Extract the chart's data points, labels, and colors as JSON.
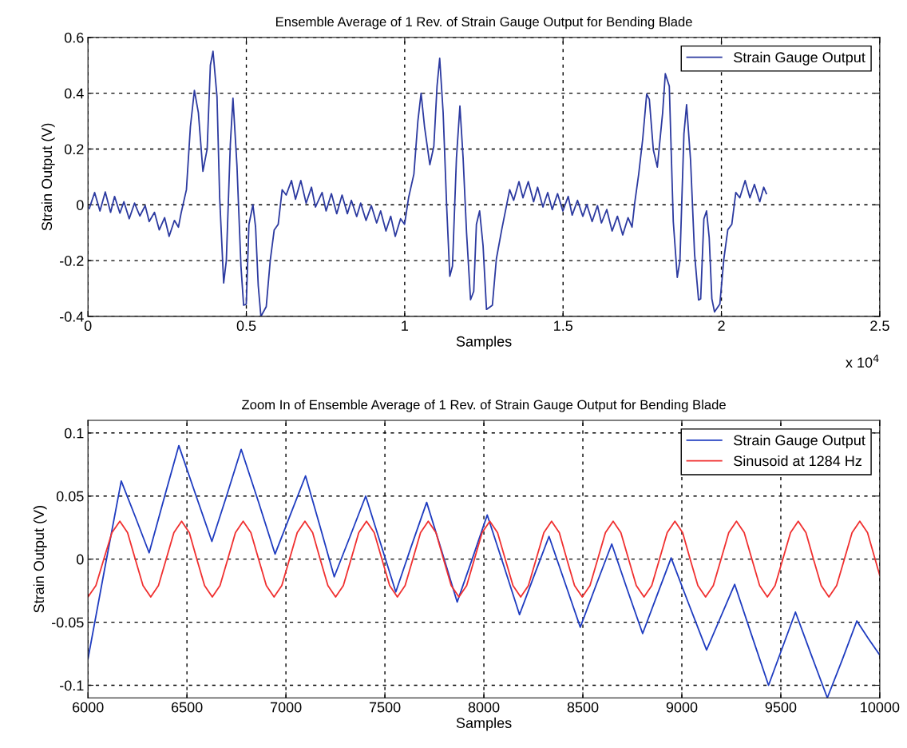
{
  "chart_data": [
    {
      "type": "line",
      "title": "Ensemble Average of 1 Rev. of Strain Gauge Output for Bending Blade",
      "xlabel": "Samples",
      "ylabel": "Strain Output (V)",
      "xlim": [
        0,
        2.5
      ],
      "ylim": [
        -0.4,
        0.6
      ],
      "xticks": [
        0,
        0.5,
        1,
        1.5,
        2,
        2.5
      ],
      "yticks": [
        -0.4,
        -0.2,
        0,
        0.2,
        0.4,
        0.6
      ],
      "grid": true,
      "legend": "top right",
      "annotations": [
        "x 10$^{4}$"
      ],
      "series": [
        {
          "name": "Strain Gauge Output",
          "color": "#2c3aa0",
          "x": [
            0.0042,
            0.021,
            0.0378,
            0.0546,
            0.0714,
            0.084,
            0.1008,
            0.1134,
            0.1302,
            0.147,
            0.1638,
            0.1806,
            0.1932,
            0.21,
            0.2251,
            0.2419,
            0.2562,
            0.273,
            0.2856,
            0.294,
            0.3108,
            0.3234,
            0.336,
            0.3486,
            0.3629,
            0.3763,
            0.3864,
            0.3948,
            0.4074,
            0.4158,
            0.4284,
            0.4368,
            0.4494,
            0.4578,
            0.4704,
            0.483,
            0.4914,
            0.4998,
            0.5082,
            0.5208,
            0.5292,
            0.5376,
            0.546,
            0.5628,
            0.5754,
            0.588,
            0.6006,
            0.6132,
            0.6258,
            0.6426,
            0.6552,
            0.672,
            0.6888,
            0.7056,
            0.7182,
            0.7392,
            0.7518,
            0.7686,
            0.7854,
            0.8022,
            0.819,
            0.8316,
            0.8484,
            0.861,
            0.8778,
            0.8946,
            0.9114,
            0.924,
            0.9408,
            0.9559,
            0.9702,
            0.987,
            0.9996,
            1.0122,
            1.029,
            1.0416,
            1.0517,
            1.0626,
            1.0794,
            1.092,
            1.1021,
            1.1105,
            1.1214,
            1.1323,
            1.1424,
            1.1508,
            1.1634,
            1.1743,
            1.1844,
            1.1953,
            1.2079,
            1.218,
            1.2264,
            1.2365,
            1.2474,
            1.2583,
            1.2768,
            1.2894,
            1.3062,
            1.323,
            1.3314,
            1.344,
            1.3608,
            1.3734,
            1.3902,
            1.407,
            1.4196,
            1.4364,
            1.4515,
            1.4658,
            1.4826,
            1.4994,
            1.5162,
            1.5288,
            1.5456,
            1.5624,
            1.575,
            1.5918,
            1.6086,
            1.6212,
            1.638,
            1.6548,
            1.6716,
            1.6884,
            1.7052,
            1.7178,
            1.7262,
            1.7388,
            1.7514,
            1.764,
            1.7724,
            1.785,
            1.7976,
            1.8144,
            1.8228,
            1.8354,
            1.848,
            1.8606,
            1.869,
            1.8816,
            1.89,
            1.9026,
            1.9152,
            1.9278,
            1.9345,
            1.9446,
            1.953,
            1.9614,
            1.9698,
            1.9782,
            1.995,
            2.0076,
            2.0202,
            2.0328,
            2.0454,
            2.058,
            2.0748,
            2.0899,
            2.1042,
            2.121,
            2.1336,
            2.142
          ],
          "values": [
            -0.013,
            0.044,
            -0.022,
            0.046,
            -0.027,
            0.03,
            -0.03,
            0.011,
            -0.05,
            0.006,
            -0.04,
            -0.003,
            -0.06,
            -0.027,
            -0.09,
            -0.046,
            -0.113,
            -0.056,
            -0.08,
            -0.03,
            0.054,
            0.28,
            0.41,
            0.33,
            0.12,
            0.2,
            0.5,
            0.55,
            0.387,
            0.025,
            -0.28,
            -0.2,
            0.216,
            0.382,
            0.14,
            -0.22,
            -0.36,
            -0.356,
            -0.07,
            0.0,
            -0.08,
            -0.29,
            -0.4,
            -0.365,
            -0.2,
            -0.09,
            -0.07,
            0.054,
            0.035,
            0.087,
            0.02,
            0.087,
            0.006,
            0.063,
            -0.008,
            0.044,
            -0.022,
            0.04,
            -0.032,
            0.035,
            -0.032,
            0.016,
            -0.042,
            0.006,
            -0.056,
            -0.003,
            -0.065,
            -0.022,
            -0.094,
            -0.041,
            -0.113,
            -0.05,
            -0.07,
            0.025,
            0.11,
            0.3,
            0.4,
            0.28,
            0.144,
            0.21,
            0.425,
            0.525,
            0.33,
            0.0,
            -0.256,
            -0.22,
            0.168,
            0.354,
            0.168,
            -0.1,
            -0.34,
            -0.31,
            -0.07,
            -0.022,
            -0.146,
            -0.375,
            -0.36,
            -0.194,
            -0.09,
            0.006,
            0.054,
            0.016,
            0.083,
            0.025,
            0.083,
            0.011,
            0.063,
            -0.008,
            0.044,
            -0.017,
            0.04,
            -0.022,
            0.03,
            -0.037,
            0.016,
            -0.041,
            0.001,
            -0.06,
            -0.003,
            -0.065,
            -0.017,
            -0.094,
            -0.041,
            -0.108,
            -0.046,
            -0.08,
            0.006,
            0.11,
            0.235,
            0.397,
            0.378,
            0.197,
            0.135,
            0.33,
            0.47,
            0.425,
            -0.06,
            -0.26,
            -0.2,
            0.254,
            0.359,
            0.159,
            -0.176,
            -0.341,
            -0.337,
            -0.051,
            -0.022,
            -0.118,
            -0.337,
            -0.384,
            -0.356,
            -0.194,
            -0.089,
            -0.07,
            0.044,
            0.025,
            0.087,
            0.025,
            0.073,
            0.011,
            0.063,
            0.04
          ]
        }
      ]
    },
    {
      "type": "line",
      "title": "Zoom In of Ensemble Average of 1 Rev. of Strain Gauge Output for Bending Blade",
      "xlabel": "Samples",
      "ylabel": "Strain Output (V)",
      "xlim": [
        6000,
        10000
      ],
      "ylim": [
        -0.11,
        0.11
      ],
      "xticks": [
        6000,
        6500,
        7000,
        7500,
        8000,
        8500,
        9000,
        9500,
        10000
      ],
      "yticks": [
        -0.1,
        -0.05,
        0,
        0.05,
        0.1
      ],
      "grid": true,
      "legend": "top right",
      "series": [
        {
          "name": "Strain Gauge Output",
          "color": "#1f3cc0",
          "x": [
            6000,
            6084,
            6168,
            6238,
            6309,
            6384,
            6459,
            6542,
            6626,
            6700,
            6774,
            6860,
            6945,
            7022,
            7099,
            7172,
            7244,
            7324,
            7403,
            7479,
            7555,
            7633,
            7711,
            7788,
            7865,
            7941,
            8017,
            8098,
            8180,
            8254,
            8329,
            8408,
            8487,
            8566,
            8646,
            8724,
            8802,
            8874,
            8946,
            9036,
            9125,
            9196,
            9267,
            9352,
            9438,
            9506,
            9574,
            9654,
            9735,
            9810,
            9884,
            9942,
            10000
          ],
          "values": [
            -0.079,
            -0.008,
            0.062,
            0.034,
            0.005,
            0.048,
            0.09,
            0.052,
            0.014,
            0.05,
            0.087,
            0.046,
            0.004,
            0.035,
            0.066,
            0.026,
            -0.014,
            0.018,
            0.05,
            0.012,
            -0.026,
            0.01,
            0.045,
            0.006,
            -0.034,
            0.0,
            0.035,
            -0.004,
            -0.044,
            -0.013,
            0.018,
            -0.018,
            -0.054,
            -0.021,
            0.012,
            -0.024,
            -0.059,
            -0.029,
            0.001,
            -0.036,
            -0.072,
            -0.046,
            -0.02,
            -0.06,
            -0.1,
            -0.071,
            -0.042,
            -0.076,
            -0.11,
            -0.08,
            -0.049,
            -0.063,
            -0.076
          ]
        },
        {
          "name": "Sinusoid at 1284 Hz",
          "color": "#f03030",
          "x": [
            6000,
            6040,
            6080,
            6121,
            6161,
            6200,
            6239,
            6278,
            6317,
            6356,
            6395,
            6434,
            6473,
            6512,
            6550,
            6589,
            6628,
            6667,
            6706,
            6745,
            6784,
            6823,
            6862,
            6901,
            6940,
            6979,
            7018,
            7057,
            7096,
            7135,
            7173,
            7212,
            7251,
            7290,
            7329,
            7368,
            7407,
            7446,
            7485,
            7524,
            7563,
            7602,
            7641,
            7680,
            7719,
            7758,
            7796,
            7835,
            7874,
            7913,
            7952,
            7991,
            8030,
            8069,
            8108,
            8147,
            8186,
            8225,
            8264,
            8303,
            8342,
            8381,
            8419,
            8458,
            8497,
            8536,
            8575,
            8614,
            8653,
            8692,
            8731,
            8770,
            8809,
            8848,
            8887,
            8926,
            8965,
            9004,
            9042,
            9081,
            9120,
            9159,
            9198,
            9237,
            9276,
            9315,
            9354,
            9393,
            9432,
            9471,
            9510,
            9549,
            9588,
            9627,
            9665,
            9704,
            9743,
            9782,
            9821,
            9860,
            9899,
            9938,
            10000
          ],
          "values": [
            -0.03,
            -0.021,
            0,
            0.021,
            0.03,
            0.021,
            0,
            -0.021,
            -0.03,
            -0.021,
            0,
            0.021,
            0.03,
            0.021,
            0,
            -0.021,
            -0.03,
            -0.021,
            0,
            0.021,
            0.03,
            0.021,
            0,
            -0.021,
            -0.03,
            -0.021,
            0,
            0.021,
            0.03,
            0.021,
            0,
            -0.021,
            -0.03,
            -0.021,
            0,
            0.021,
            0.03,
            0.021,
            0,
            -0.021,
            -0.03,
            -0.021,
            0,
            0.021,
            0.03,
            0.021,
            0,
            -0.021,
            -0.03,
            -0.021,
            0,
            0.021,
            0.03,
            0.021,
            0,
            -0.021,
            -0.03,
            -0.021,
            0,
            0.021,
            0.03,
            0.021,
            0,
            -0.021,
            -0.03,
            -0.021,
            0,
            0.021,
            0.03,
            0.021,
            0,
            -0.021,
            -0.03,
            -0.021,
            0,
            0.021,
            0.03,
            0.021,
            0,
            -0.021,
            -0.03,
            -0.021,
            0,
            0.021,
            0.03,
            0.021,
            0,
            -0.021,
            -0.03,
            -0.021,
            0,
            0.021,
            0.03,
            0.021,
            0,
            -0.021,
            -0.03,
            -0.021,
            0,
            0.021,
            0.03,
            0.021,
            -0.013
          ]
        }
      ]
    }
  ]
}
